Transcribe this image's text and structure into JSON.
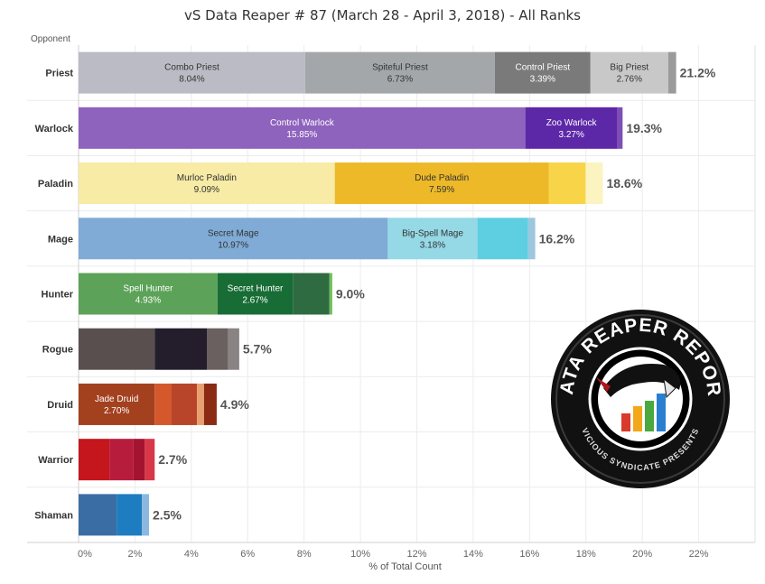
{
  "chart_data": {
    "type": "bar",
    "orientation": "horizontal",
    "stacked": true,
    "title": "vS Data Reaper # 87 (March 28 - April 3, 2018) - All Ranks",
    "ylabel": "Opponent",
    "xlabel": "% of Total Count",
    "xlim": [
      0,
      24
    ],
    "xticks": [
      "0%",
      "2%",
      "4%",
      "6%",
      "8%",
      "10%",
      "12%",
      "14%",
      "16%",
      "18%",
      "20%",
      "22%"
    ],
    "grid": true,
    "logo_text": [
      "DATA REAPER REPORT",
      "VICIOUS SYNDICATE PRESENTS"
    ],
    "categories": [
      {
        "name": "Priest",
        "total_label": "21.2%",
        "segments": [
          {
            "name": "Combo Priest",
            "label": "8.04%",
            "value": 8.04,
            "color": "#bbbbc5",
            "text_color": "#333333"
          },
          {
            "name": "Spiteful Priest",
            "label": "6.73%",
            "value": 6.73,
            "color": "#a4a7aa",
            "text_color": "#333333"
          },
          {
            "name": "Control Priest",
            "label": "3.39%",
            "value": 3.39,
            "color": "#7a7a7a",
            "text_color": "#ffffff"
          },
          {
            "name": "Big Priest",
            "label": "2.76%",
            "value": 2.76,
            "color": "#c8c8c8",
            "text_color": "#333333"
          },
          {
            "name": "",
            "label": "",
            "value": 0.28,
            "color": "#9a9a9a",
            "text_color": "#333333"
          }
        ]
      },
      {
        "name": "Warlock",
        "total_label": "19.3%",
        "segments": [
          {
            "name": "Control Warlock",
            "label": "15.85%",
            "value": 15.85,
            "color": "#8e63bd",
            "text_color": "#ffffff"
          },
          {
            "name": "Zoo Warlock",
            "label": "3.27%",
            "value": 3.27,
            "color": "#5d28a8",
            "text_color": "#ffffff"
          },
          {
            "name": "",
            "label": "",
            "value": 0.18,
            "color": "#7d4fb5",
            "text_color": "#ffffff"
          }
        ]
      },
      {
        "name": "Paladin",
        "total_label": "18.6%",
        "segments": [
          {
            "name": "Murloc Paladin",
            "label": "9.09%",
            "value": 9.09,
            "color": "#f7eba5",
            "text_color": "#333333"
          },
          {
            "name": "Dude Paladin",
            "label": "7.59%",
            "value": 7.59,
            "color": "#edb928",
            "text_color": "#333333"
          },
          {
            "name": "",
            "label": "",
            "value": 1.31,
            "color": "#f8d449",
            "text_color": "#333333"
          },
          {
            "name": "",
            "label": "",
            "value": 0.61,
            "color": "#fbf3c0",
            "text_color": "#333333"
          }
        ]
      },
      {
        "name": "Mage",
        "total_label": "16.2%",
        "segments": [
          {
            "name": "Secret Mage",
            "label": "10.97%",
            "value": 10.97,
            "color": "#7fabd6",
            "text_color": "#333333"
          },
          {
            "name": "Big-Spell Mage",
            "label": "3.18%",
            "value": 3.18,
            "color": "#95d8e6",
            "text_color": "#333333"
          },
          {
            "name": "",
            "label": "",
            "value": 1.8,
            "color": "#5dcfe0",
            "text_color": "#333333"
          },
          {
            "name": "",
            "label": "",
            "value": 0.25,
            "color": "#9cc7de",
            "text_color": "#333333"
          }
        ]
      },
      {
        "name": "Hunter",
        "total_label": "9.0%",
        "segments": [
          {
            "name": "Spell Hunter",
            "label": "4.93%",
            "value": 4.93,
            "color": "#5ca258",
            "text_color": "#ffffff"
          },
          {
            "name": "Secret Hunter",
            "label": "2.67%",
            "value": 2.67,
            "color": "#186c35",
            "text_color": "#ffffff"
          },
          {
            "name": "",
            "label": "",
            "value": 1.3,
            "color": "#2e6b40",
            "text_color": "#ffffff"
          },
          {
            "name": "",
            "label": "",
            "value": 0.1,
            "color": "#6fbf5a",
            "text_color": "#ffffff"
          }
        ]
      },
      {
        "name": "Rogue",
        "total_label": "5.7%",
        "segments": [
          {
            "name": "",
            "label": "",
            "value": 2.7,
            "color": "#5a4f4f",
            "text_color": "#ffffff"
          },
          {
            "name": "",
            "label": "",
            "value": 1.85,
            "color": "#241d2b",
            "text_color": "#ffffff"
          },
          {
            "name": "",
            "label": "",
            "value": 0.75,
            "color": "#6a6060",
            "text_color": "#ffffff"
          },
          {
            "name": "",
            "label": "",
            "value": 0.4,
            "color": "#8a8383",
            "text_color": "#ffffff"
          }
        ]
      },
      {
        "name": "Druid",
        "total_label": "4.9%",
        "segments": [
          {
            "name": "Jade Druid",
            "label": "2.70%",
            "value": 2.7,
            "color": "#a3411f",
            "text_color": "#ffffff"
          },
          {
            "name": "",
            "label": "",
            "value": 0.6,
            "color": "#d4582b",
            "text_color": "#ffffff"
          },
          {
            "name": "",
            "label": "",
            "value": 0.9,
            "color": "#b8452a",
            "text_color": "#ffffff"
          },
          {
            "name": "",
            "label": "",
            "value": 0.25,
            "color": "#e8a070",
            "text_color": "#ffffff"
          },
          {
            "name": "",
            "label": "",
            "value": 0.45,
            "color": "#8c2b14",
            "text_color": "#ffffff"
          }
        ]
      },
      {
        "name": "Warrior",
        "total_label": "2.7%",
        "segments": [
          {
            "name": "",
            "label": "",
            "value": 1.1,
            "color": "#c4161c",
            "text_color": "#ffffff"
          },
          {
            "name": "",
            "label": "",
            "value": 0.85,
            "color": "#b81c3c",
            "text_color": "#ffffff"
          },
          {
            "name": "",
            "label": "",
            "value": 0.4,
            "color": "#a41430",
            "text_color": "#ffffff"
          },
          {
            "name": "",
            "label": "",
            "value": 0.35,
            "color": "#d8374a",
            "text_color": "#ffffff"
          }
        ]
      },
      {
        "name": "Shaman",
        "total_label": "2.5%",
        "segments": [
          {
            "name": "",
            "label": "",
            "value": 1.35,
            "color": "#3b6da5",
            "text_color": "#ffffff"
          },
          {
            "name": "",
            "label": "",
            "value": 0.9,
            "color": "#1e7dc0",
            "text_color": "#ffffff"
          },
          {
            "name": "",
            "label": "",
            "value": 0.25,
            "color": "#8ab8e0",
            "text_color": "#ffffff"
          }
        ]
      }
    ]
  }
}
